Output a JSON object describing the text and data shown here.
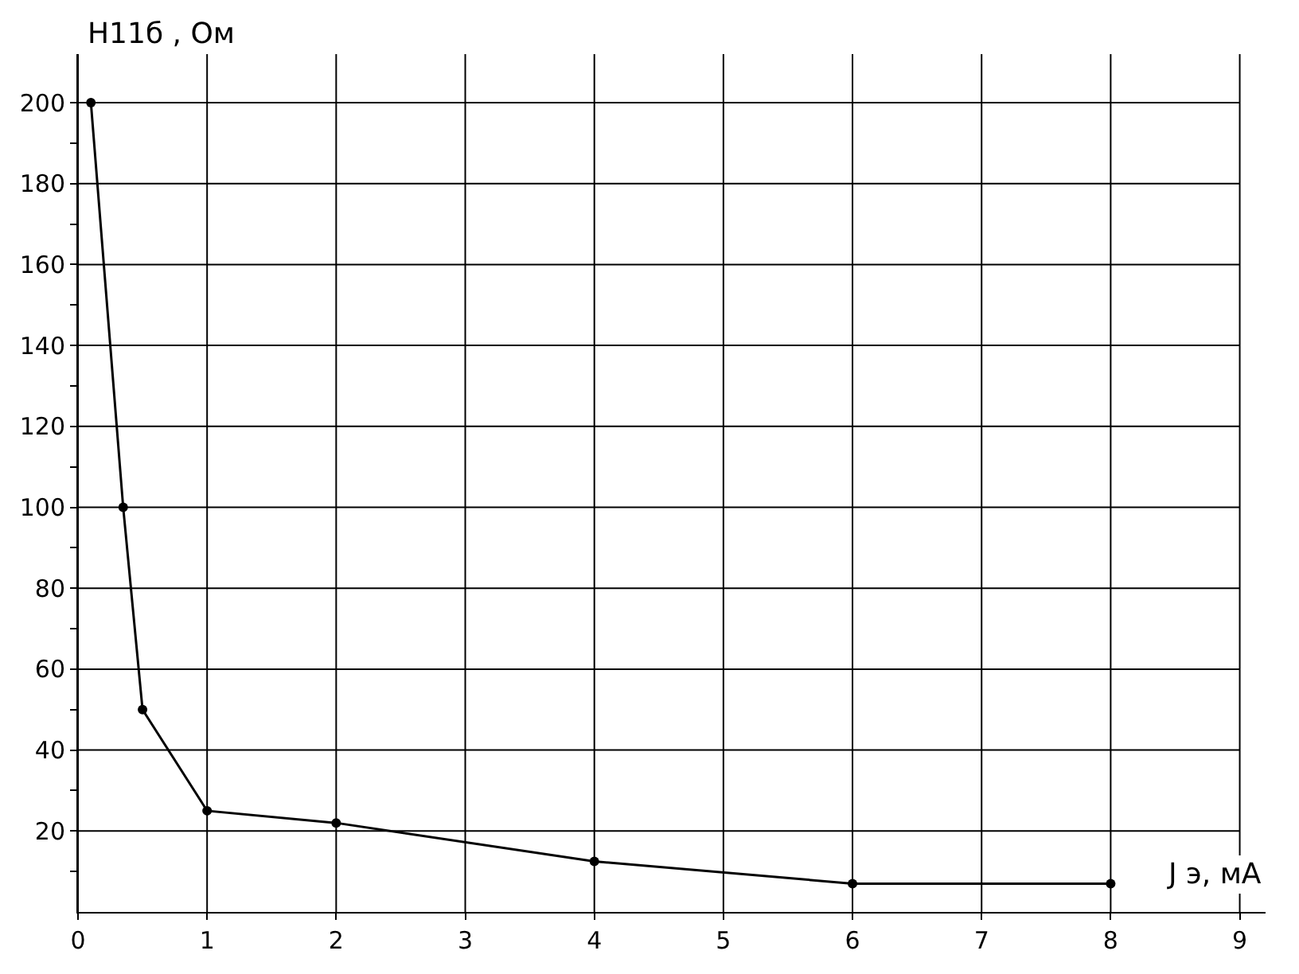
{
  "chart_data": {
    "type": "line",
    "xlabel": "J э, мА",
    "ylabel": "H11б , Ом",
    "x": [
      0.1,
      0.35,
      0.5,
      1,
      2,
      4,
      6,
      8
    ],
    "series": [
      {
        "color": "#000000",
        "values": [
          200,
          100,
          50,
          25,
          22,
          12.5,
          7,
          7
        ]
      }
    ],
    "xlim": [
      0,
      9.2
    ],
    "ylim": [
      0,
      212
    ],
    "xticks": [
      {
        "value": 0,
        "label": "0"
      },
      1,
      2,
      3,
      4,
      5,
      6,
      7,
      8,
      9
    ],
    "yticks": [
      {
        "value": 10,
        "label": null
      },
      20,
      {
        "value": 30,
        "label": null
      },
      40,
      {
        "value": 50,
        "label": null
      },
      60,
      {
        "value": 70,
        "label": null
      },
      80,
      {
        "value": 90,
        "label": null
      },
      100,
      {
        "value": 110,
        "label": null
      },
      120,
      {
        "value": 130,
        "label": null
      },
      140,
      {
        "value": 150,
        "label": null
      },
      160,
      {
        "value": 170,
        "label": null
      },
      180,
      {
        "value": 190,
        "label": null
      },
      200
    ],
    "grid": true,
    "marker": "circle",
    "line_style": "solid"
  }
}
